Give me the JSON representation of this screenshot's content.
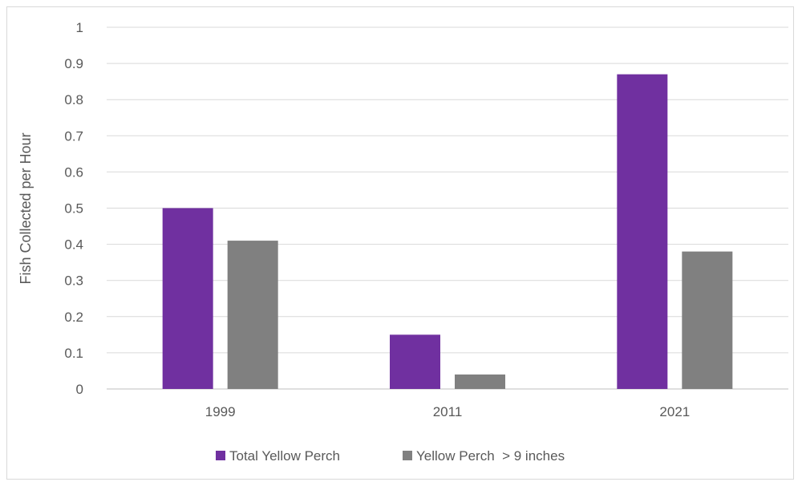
{
  "chart_data": {
    "type": "bar",
    "title": "",
    "xlabel": "",
    "ylabel": "Fish Collected per Hour",
    "ylim": [
      0,
      1
    ],
    "yticks": [
      "0",
      "0.1",
      "0.2",
      "0.3",
      "0.4",
      "0.5",
      "0.6",
      "0.7",
      "0.8",
      "0.9",
      "1"
    ],
    "categories": [
      "1999",
      "2011",
      "2021"
    ],
    "series": [
      {
        "name": "Total Yellow Perch",
        "values": [
          0.5,
          0.15,
          0.87
        ],
        "color": "#7030a0"
      },
      {
        "name": "Yellow Perch  > 9 inches",
        "values": [
          0.41,
          0.04,
          0.38
        ],
        "color": "#808080"
      }
    ],
    "grid": true,
    "legend_position": "bottom"
  }
}
